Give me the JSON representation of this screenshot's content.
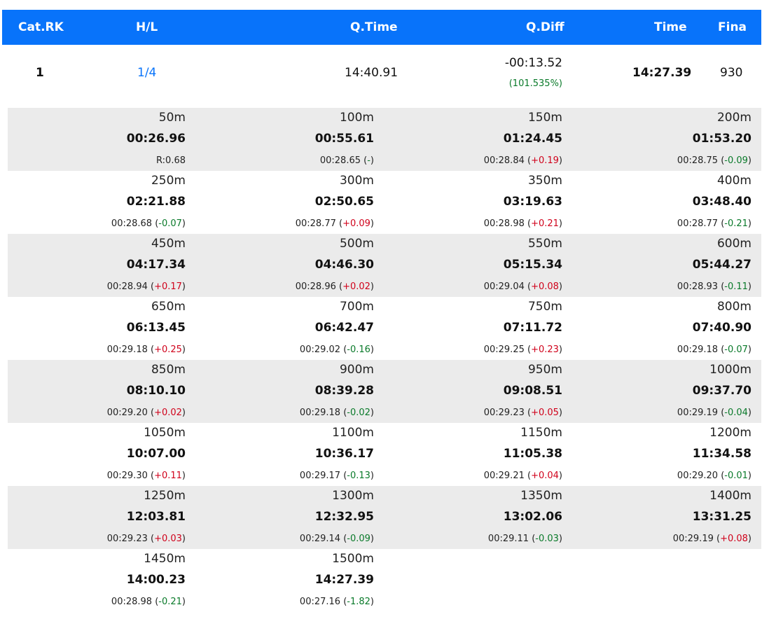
{
  "colors": {
    "header_bg": "#0873fa",
    "link": "#0873fa",
    "positive": "#d0021b",
    "negative": "#0a7a2a",
    "shade": "#ebebeb"
  },
  "header": {
    "cat_rk": "Cat.RK",
    "hl": "H/L",
    "qtime": "Q.Time",
    "qdiff": "Q.Diff",
    "time": "Time",
    "fina": "Fina"
  },
  "summary": {
    "cat_rk": "1",
    "hl": "1/4",
    "qtime": "14:40.91",
    "qdiff": "-00:13.52",
    "qdiff_pct": "(101.535%)",
    "time": "14:27.39",
    "fina": "930"
  },
  "splits": [
    {
      "dist": "50m",
      "cum": "00:26.96",
      "lap": "R:0.68",
      "delta": "",
      "sign": ""
    },
    {
      "dist": "100m",
      "cum": "00:55.61",
      "lap": "00:28.65",
      "delta": "-",
      "sign": "neu"
    },
    {
      "dist": "150m",
      "cum": "01:24.45",
      "lap": "00:28.84",
      "delta": "+0.19",
      "sign": "pos"
    },
    {
      "dist": "200m",
      "cum": "01:53.20",
      "lap": "00:28.75",
      "delta": "-0.09",
      "sign": "neg"
    },
    {
      "dist": "250m",
      "cum": "02:21.88",
      "lap": "00:28.68",
      "delta": "-0.07",
      "sign": "neg"
    },
    {
      "dist": "300m",
      "cum": "02:50.65",
      "lap": "00:28.77",
      "delta": "+0.09",
      "sign": "pos"
    },
    {
      "dist": "350m",
      "cum": "03:19.63",
      "lap": "00:28.98",
      "delta": "+0.21",
      "sign": "pos"
    },
    {
      "dist": "400m",
      "cum": "03:48.40",
      "lap": "00:28.77",
      "delta": "-0.21",
      "sign": "neg"
    },
    {
      "dist": "450m",
      "cum": "04:17.34",
      "lap": "00:28.94",
      "delta": "+0.17",
      "sign": "pos"
    },
    {
      "dist": "500m",
      "cum": "04:46.30",
      "lap": "00:28.96",
      "delta": "+0.02",
      "sign": "pos"
    },
    {
      "dist": "550m",
      "cum": "05:15.34",
      "lap": "00:29.04",
      "delta": "+0.08",
      "sign": "pos"
    },
    {
      "dist": "600m",
      "cum": "05:44.27",
      "lap": "00:28.93",
      "delta": "-0.11",
      "sign": "neg"
    },
    {
      "dist": "650m",
      "cum": "06:13.45",
      "lap": "00:29.18",
      "delta": "+0.25",
      "sign": "pos"
    },
    {
      "dist": "700m",
      "cum": "06:42.47",
      "lap": "00:29.02",
      "delta": "-0.16",
      "sign": "neg"
    },
    {
      "dist": "750m",
      "cum": "07:11.72",
      "lap": "00:29.25",
      "delta": "+0.23",
      "sign": "pos"
    },
    {
      "dist": "800m",
      "cum": "07:40.90",
      "lap": "00:29.18",
      "delta": "-0.07",
      "sign": "neg"
    },
    {
      "dist": "850m",
      "cum": "08:10.10",
      "lap": "00:29.20",
      "delta": "+0.02",
      "sign": "pos"
    },
    {
      "dist": "900m",
      "cum": "08:39.28",
      "lap": "00:29.18",
      "delta": "-0.02",
      "sign": "neg"
    },
    {
      "dist": "950m",
      "cum": "09:08.51",
      "lap": "00:29.23",
      "delta": "+0.05",
      "sign": "pos"
    },
    {
      "dist": "1000m",
      "cum": "09:37.70",
      "lap": "00:29.19",
      "delta": "-0.04",
      "sign": "neg"
    },
    {
      "dist": "1050m",
      "cum": "10:07.00",
      "lap": "00:29.30",
      "delta": "+0.11",
      "sign": "pos"
    },
    {
      "dist": "1100m",
      "cum": "10:36.17",
      "lap": "00:29.17",
      "delta": "-0.13",
      "sign": "neg"
    },
    {
      "dist": "1150m",
      "cum": "11:05.38",
      "lap": "00:29.21",
      "delta": "+0.04",
      "sign": "pos"
    },
    {
      "dist": "1200m",
      "cum": "11:34.58",
      "lap": "00:29.20",
      "delta": "-0.01",
      "sign": "neg"
    },
    {
      "dist": "1250m",
      "cum": "12:03.81",
      "lap": "00:29.23",
      "delta": "+0.03",
      "sign": "pos"
    },
    {
      "dist": "1300m",
      "cum": "12:32.95",
      "lap": "00:29.14",
      "delta": "-0.09",
      "sign": "neg"
    },
    {
      "dist": "1350m",
      "cum": "13:02.06",
      "lap": "00:29.11",
      "delta": "-0.03",
      "sign": "neg"
    },
    {
      "dist": "1400m",
      "cum": "13:31.25",
      "lap": "00:29.19",
      "delta": "+0.08",
      "sign": "pos"
    },
    {
      "dist": "1450m",
      "cum": "14:00.23",
      "lap": "00:28.98",
      "delta": "-0.21",
      "sign": "neg"
    },
    {
      "dist": "1500m",
      "cum": "14:27.39",
      "lap": "00:27.16",
      "delta": "-1.82",
      "sign": "neg"
    }
  ]
}
